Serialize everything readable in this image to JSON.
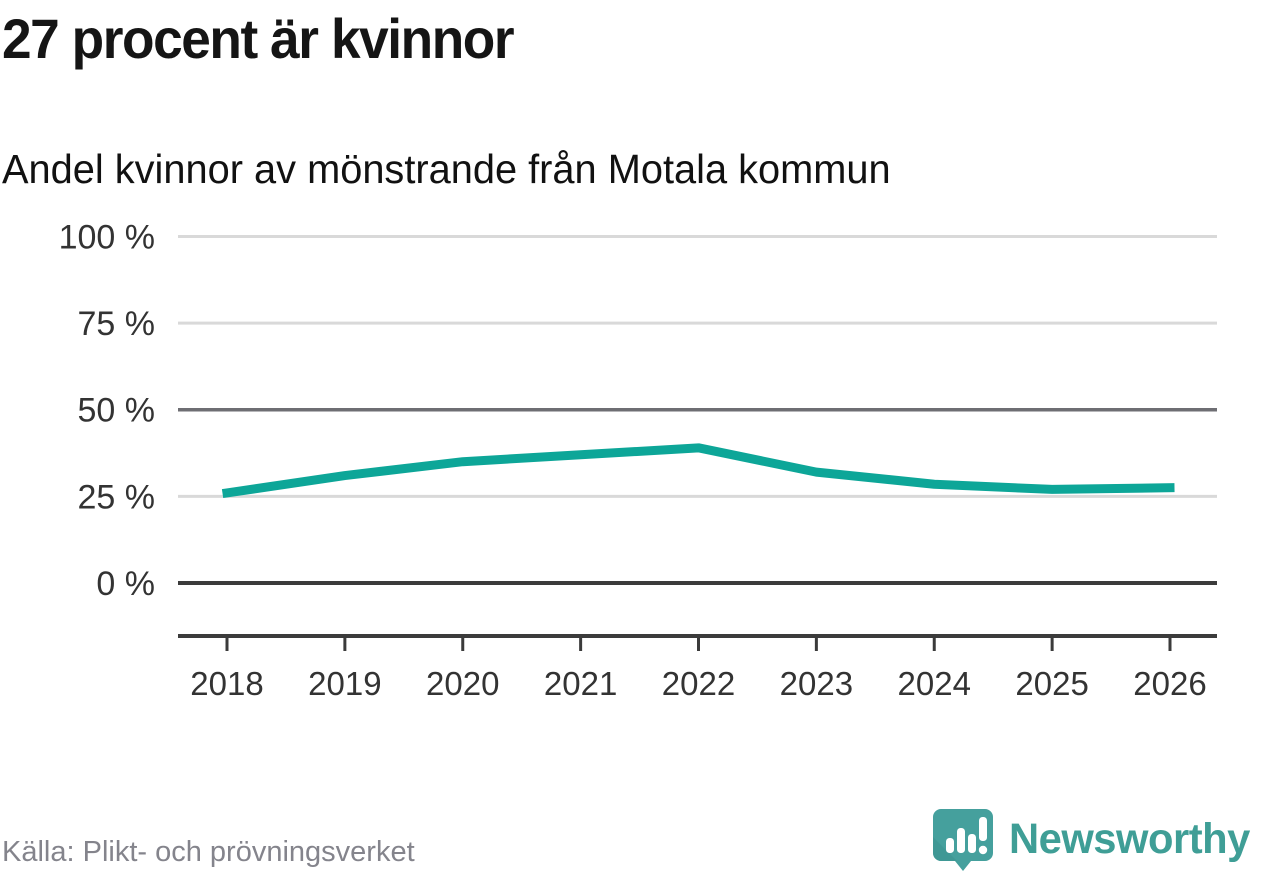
{
  "header": {
    "title": "27 procent är kvinnor",
    "subtitle": "Andel kvinnor av mönstrande från Motala kommun"
  },
  "chart_data": {
    "type": "line",
    "title": "27 procent är kvinnor",
    "subtitle": "Andel kvinnor av mönstrande från Motala kommun",
    "categories": [
      "2018",
      "2019",
      "2020",
      "2021",
      "2022",
      "2023",
      "2024",
      "2025",
      "2026"
    ],
    "series": [
      {
        "name": "Andel kvinnor av mönstrande",
        "values": [
          26,
          31,
          35,
          37,
          39,
          32,
          28.5,
          27,
          27.5
        ]
      }
    ],
    "unit": "%",
    "ylim": [
      0,
      100
    ],
    "y_ticks": [
      {
        "value": 0,
        "label": "0 %"
      },
      {
        "value": 25,
        "label": "25 %"
      },
      {
        "value": 50,
        "label": "50 %"
      },
      {
        "value": 75,
        "label": "75 %"
      },
      {
        "value": 100,
        "label": "100 %"
      }
    ],
    "grid": "horizontal-only",
    "legend": "none",
    "line_color": "#0da698"
  },
  "footer": {
    "source": "Källa: Plikt- och prövningsverket",
    "brand": "Newsworthy"
  },
  "colors": {
    "accent_teal": "#0da698",
    "brand_teal": "#3f9e96",
    "brand_teal_dark": "#358b86",
    "grid_light": "#d9d9d9",
    "grid_mid": "#6e6e73",
    "axis_dark": "#3b3b3b",
    "tick_text": "#333333",
    "source_text": "#84848c"
  },
  "icons": {
    "brand_icon": "newsworthy-speech-bubble-bar-chart-icon"
  }
}
